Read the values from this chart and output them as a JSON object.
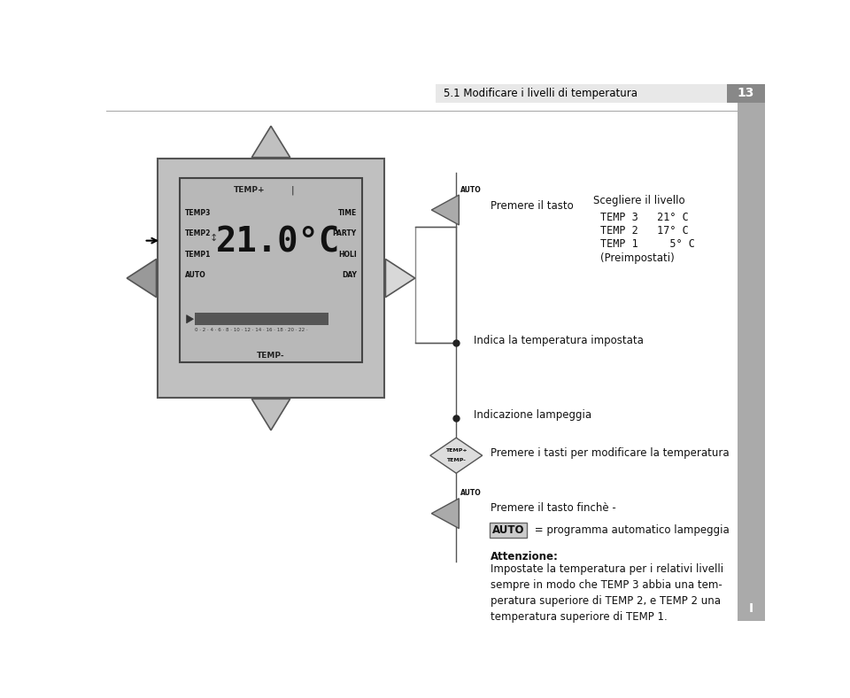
{
  "title": "5.1 Modificare i livelli di temperatura",
  "page_number": "13",
  "bg_color": "#ffffff",
  "left_labels": [
    "TEMP3",
    "TEMP2",
    "TEMP1",
    "AUTO"
  ],
  "right_labels": [
    "TIME",
    "PARTY",
    "HOLI",
    "DAY"
  ],
  "top_label": "TEMP+",
  "bottom_label": "TEMP-",
  "bar_label": "0 · 2 · 4 · 6 · 8 · 10 · 12 · 14 · 16 · 18 · 20 · 22 ·",
  "annotation1_text": "Premere il tasto",
  "annotation1_right": "Scegliere il livello",
  "annotation1_line1": "TEMP 3   21° C",
  "annotation1_line2": "TEMP 2   17° C",
  "annotation1_line3": "TEMP 1     5° C",
  "annotation1_line4": "(Preimpostati)",
  "annotation2_text": "Indica la temperatura impostata",
  "annotation3_text": "Indicazione lampeggia",
  "annotation4_text": "Premere i tasti per modificare la temperatura",
  "annotation5_text1": "Premere il tasto finchè -",
  "annotation5_text2": " = programma automatico lampeggia",
  "attenzione_title": "Attenzione:",
  "attenzione_body": "Impostate la temperatura per i relativi livelli\nsempre in modo che TEMP 3 abbia una tem-\nperatura superiore di TEMP 2, e TEMP 2 una\ntemperatura superiore di TEMP 1."
}
